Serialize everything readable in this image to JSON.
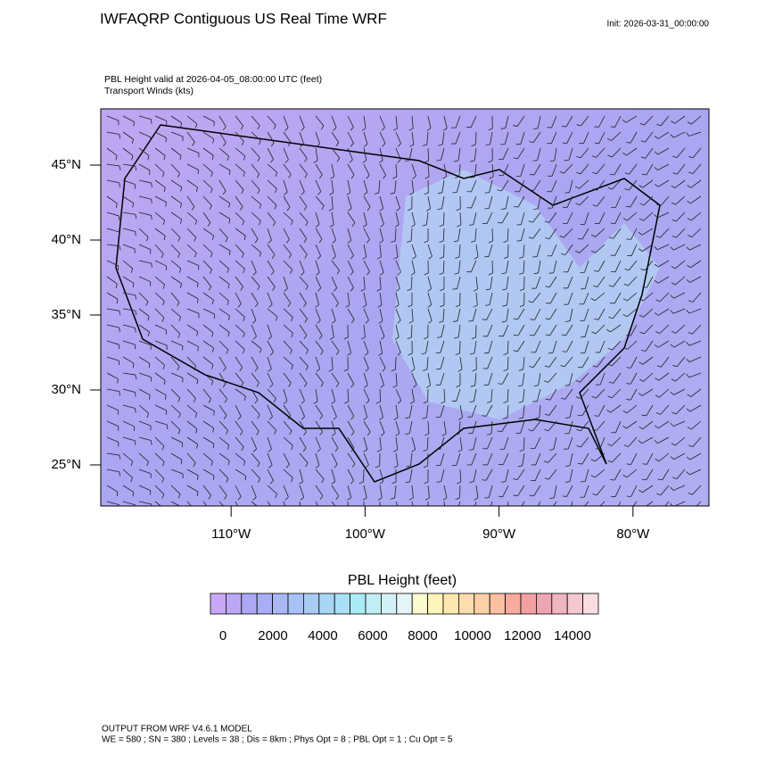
{
  "header": {
    "title": "IWFAQRP Contiguous US Real Time WRF",
    "init": "Init: 2026-03-31_00:00:00",
    "subtitle": [
      "PBL Height valid at 2026-04-05_08:00:00 UTC   (feet)",
      "Transport Winds   (kts)"
    ]
  },
  "map": {
    "lat_range": [
      22.26,
      48.75
    ],
    "lon_range": [
      -119.73,
      -74.33
    ],
    "lat_ticks": [
      {
        "value": 45,
        "label": "45°N"
      },
      {
        "value": 40,
        "label": "40°N"
      },
      {
        "value": 35,
        "label": "35°N"
      },
      {
        "value": 30,
        "label": "30°N"
      },
      {
        "value": 25,
        "label": "25°N"
      }
    ],
    "lon_ticks": [
      {
        "value": -110,
        "label": "110°W"
      },
      {
        "value": -100,
        "label": "100°W"
      },
      {
        "value": -90,
        "label": "90°W"
      },
      {
        "value": -80,
        "label": "80°W"
      }
    ]
  },
  "colorbar": {
    "title": "PBL Height  (feet)",
    "range": [
      -500,
      15036
    ],
    "colors": [
      "#c9a9f5",
      "#bba8f5",
      "#aca8f5",
      "#a9aef5",
      "#a9b8f5",
      "#a9c2f5",
      "#a9ccf5",
      "#a9d6f5",
      "#a9e0f5",
      "#a9ecf5",
      "#bfeff5",
      "#d3f1f5",
      "#e5f4f5",
      "#fdfbd0",
      "#fdf4b8",
      "#fde9b0",
      "#fdddae",
      "#fdd0a8",
      "#fdc0a0",
      "#fbab9e",
      "#f5a0a0",
      "#eda5b0",
      "#efb5c0",
      "#f5c8cf",
      "#fadde0"
    ],
    "ticks": [
      0,
      2000,
      4000,
      6000,
      8000,
      10000,
      12000,
      14000
    ]
  },
  "footer": [
    "OUTPUT FROM WRF V4.6.1 MODEL",
    "WE = 580 ; SN = 380 ; Levels = 38 ; Dis = 8km ; Phys Opt = 8 ; PBL Opt = 1 ; Cu Opt = 5"
  ]
}
